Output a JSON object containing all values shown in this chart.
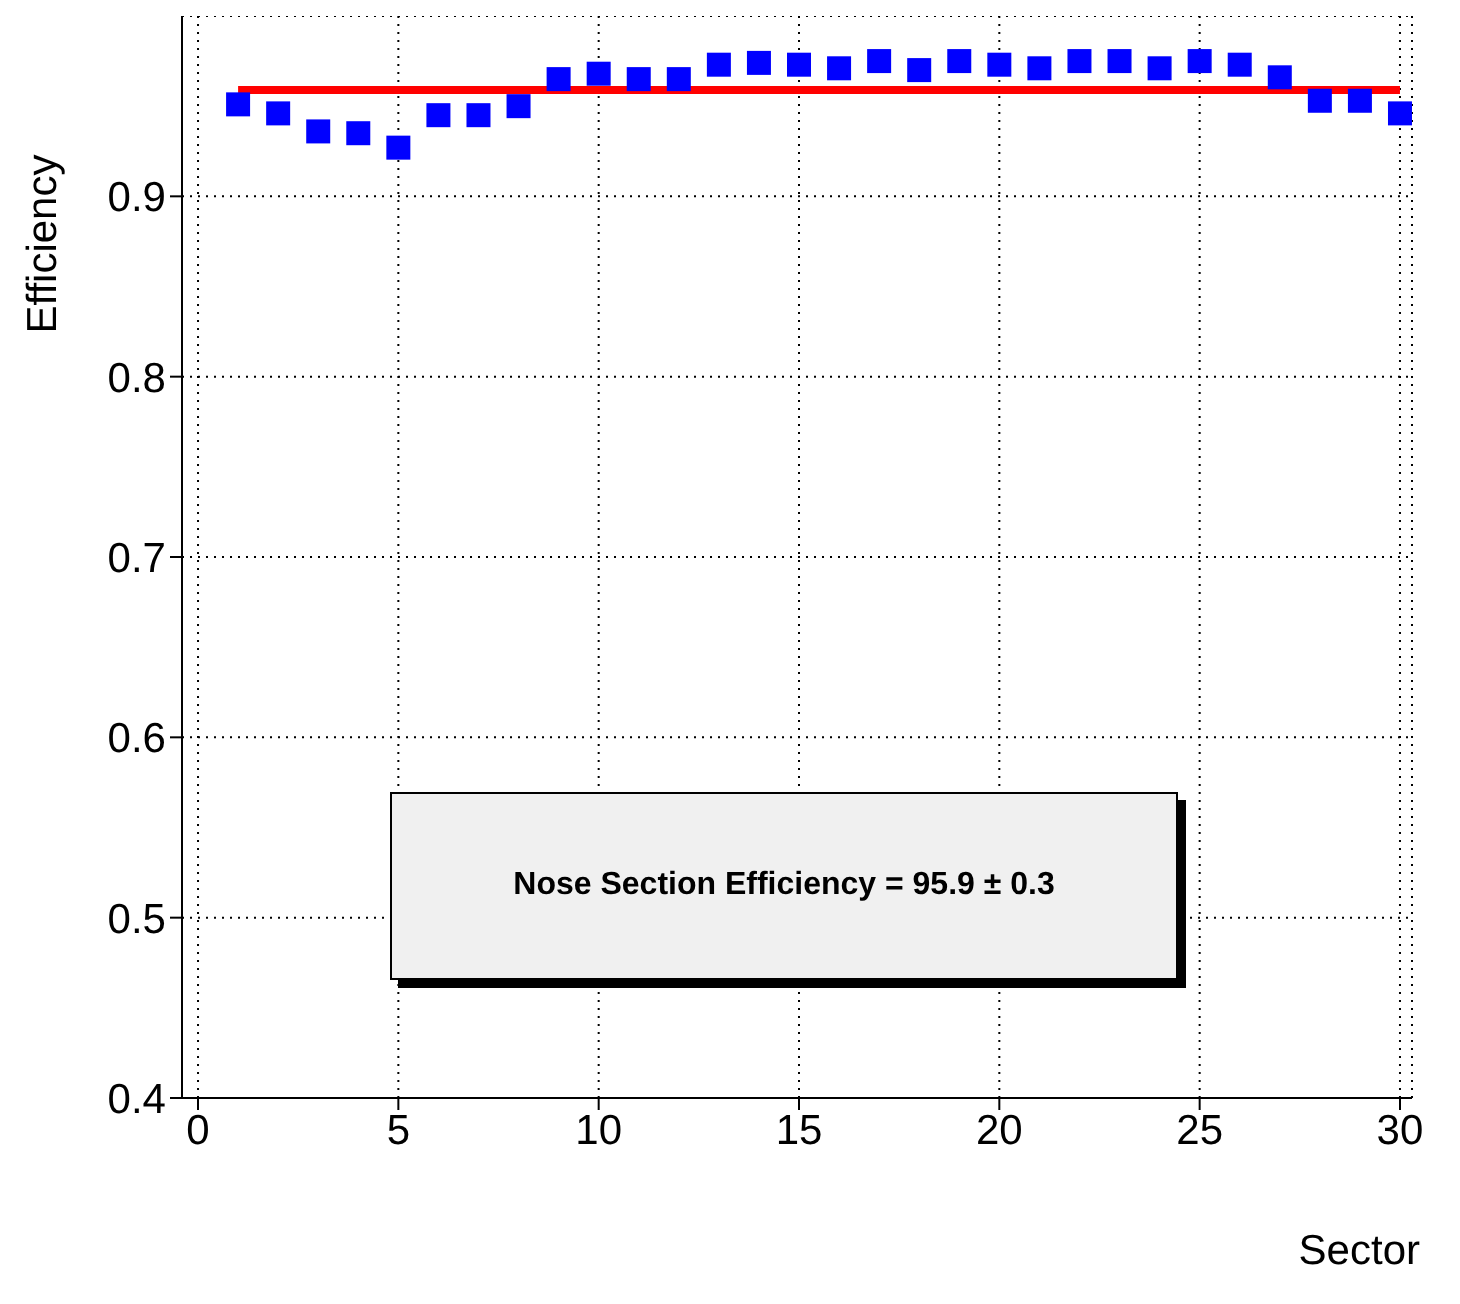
{
  "chart_data": {
    "type": "scatter",
    "xlabel": "Sector",
    "ylabel": "Efficiency",
    "annotations": [
      "Nose Section Efficiency = 95.9 ± 0.3"
    ],
    "xlim": [
      -0.4,
      30.3
    ],
    "xticks": [
      0,
      5,
      10,
      15,
      20,
      25,
      30
    ],
    "ylim": [
      0.4,
      1.0
    ],
    "yticks": [
      0.4,
      0.5,
      0.6,
      0.7,
      0.8,
      0.9
    ],
    "grid": true,
    "marker": "square",
    "x": [
      1,
      2,
      3,
      4,
      5,
      6,
      7,
      8,
      9,
      10,
      11,
      12,
      13,
      14,
      15,
      16,
      17,
      18,
      19,
      20,
      21,
      22,
      23,
      24,
      25,
      26,
      27,
      28,
      29,
      30
    ],
    "series": [
      {
        "color": "#0000ff",
        "values": [
          0.951,
          0.946,
          0.936,
          0.935,
          0.927,
          0.945,
          0.945,
          0.95,
          0.965,
          0.968,
          0.965,
          0.965,
          0.973,
          0.974,
          0.973,
          0.971,
          0.975,
          0.97,
          0.975,
          0.973,
          0.971,
          0.975,
          0.975,
          0.971,
          0.975,
          0.973,
          0.966,
          0.953,
          0.953,
          0.946
        ]
      },
      {
        "type": "line",
        "color": "#ff0000",
        "x": [
          1,
          30
        ],
        "values": [
          0.959,
          0.959
        ],
        "marker": "none"
      }
    ]
  }
}
